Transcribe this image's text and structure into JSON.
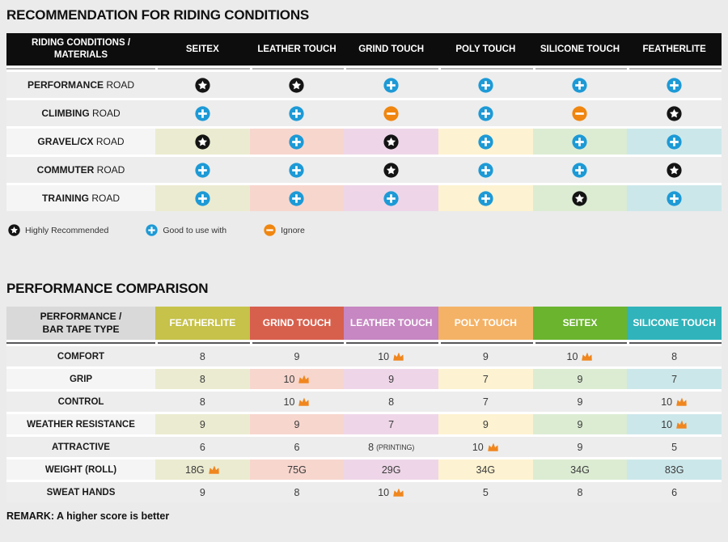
{
  "riding_table": {
    "title": "RECOMMENDATION FOR RIDING CONDITIONS",
    "corner_line1": "RIDING CONDITIONS /",
    "corner_line2": "MATERIALS",
    "columns": [
      "SEITEX",
      "LEATHER TOUCH",
      "GRIND TOUCH",
      "POLY TOUCH",
      "SILICONE TOUCH",
      "FEATHERLITE"
    ],
    "rows": [
      {
        "label_bold": "PERFORMANCE",
        "label_rest": " ROAD",
        "tinted": false,
        "cells": [
          "star",
          "star",
          "plus",
          "plus",
          "plus",
          "plus"
        ]
      },
      {
        "label_bold": "CLIMBING",
        "label_rest": " ROAD",
        "tinted": false,
        "cells": [
          "plus",
          "plus",
          "minus",
          "plus",
          "minus",
          "star"
        ]
      },
      {
        "label_bold": "GRAVEL/CX",
        "label_rest": " ROAD",
        "tinted": true,
        "cells": [
          "star",
          "plus",
          "star",
          "plus",
          "plus",
          "plus"
        ]
      },
      {
        "label_bold": "COMMUTER",
        "label_rest": " ROAD",
        "tinted": false,
        "cells": [
          "plus",
          "plus",
          "star",
          "plus",
          "plus",
          "star"
        ]
      },
      {
        "label_bold": "TRAINING",
        "label_rest": " ROAD",
        "tinted": true,
        "cells": [
          "plus",
          "plus",
          "plus",
          "plus",
          "star",
          "plus"
        ]
      }
    ],
    "legend": [
      {
        "icon": "star",
        "label": "Highly Recommended"
      },
      {
        "icon": "plus",
        "label": "Good to use with"
      },
      {
        "icon": "minus",
        "label": "Ignore"
      }
    ]
  },
  "performance_table": {
    "title": "PERFORMANCE COMPARISON",
    "corner_line1": "PERFORMANCE /",
    "corner_line2": "BAR TAPE TYPE",
    "columns": [
      {
        "label": "FEATHERLITE",
        "color": "#c6c24a"
      },
      {
        "label": "GRIND TOUCH",
        "color": "#d7604d"
      },
      {
        "label": "LEATHER TOUCH",
        "color": "#c687c2"
      },
      {
        "label": "POLY TOUCH",
        "color": "#f4b266"
      },
      {
        "label": "SEITEX",
        "color": "#6ab42e"
      },
      {
        "label": "SILICONE TOUCH",
        "color": "#30b3bb"
      }
    ],
    "rows": [
      {
        "label": "COMFORT",
        "tinted": false,
        "cells": [
          {
            "v": "8"
          },
          {
            "v": "9"
          },
          {
            "v": "10",
            "crown": true
          },
          {
            "v": "9"
          },
          {
            "v": "10",
            "crown": true
          },
          {
            "v": "8"
          }
        ]
      },
      {
        "label": "GRIP",
        "tinted": true,
        "cells": [
          {
            "v": "8"
          },
          {
            "v": "10",
            "crown": true
          },
          {
            "v": "9"
          },
          {
            "v": "7"
          },
          {
            "v": "9"
          },
          {
            "v": "7"
          }
        ]
      },
      {
        "label": "CONTROL",
        "tinted": false,
        "cells": [
          {
            "v": "8"
          },
          {
            "v": "10",
            "crown": true
          },
          {
            "v": "8"
          },
          {
            "v": "7"
          },
          {
            "v": "9"
          },
          {
            "v": "10",
            "crown": true
          }
        ]
      },
      {
        "label": "WEATHER RESISTANCE",
        "tinted": true,
        "cells": [
          {
            "v": "9"
          },
          {
            "v": "9"
          },
          {
            "v": "7"
          },
          {
            "v": "9"
          },
          {
            "v": "9"
          },
          {
            "v": "10",
            "crown": true
          }
        ]
      },
      {
        "label": "ATTRACTIVE",
        "tinted": false,
        "cells": [
          {
            "v": "6"
          },
          {
            "v": "6"
          },
          {
            "v": "8",
            "note": "(PRINTING)"
          },
          {
            "v": "10",
            "crown": true
          },
          {
            "v": "9"
          },
          {
            "v": "5"
          }
        ]
      },
      {
        "label": "WEIGHT (ROLL)",
        "tinted": true,
        "cells": [
          {
            "v": "18G",
            "crown": true
          },
          {
            "v": "75G"
          },
          {
            "v": "29G"
          },
          {
            "v": "34G"
          },
          {
            "v": "34G"
          },
          {
            "v": "83G"
          }
        ]
      },
      {
        "label": "SWEAT HANDS",
        "tinted": false,
        "cells": [
          {
            "v": "9"
          },
          {
            "v": "8"
          },
          {
            "v": "10",
            "crown": true
          },
          {
            "v": "5"
          },
          {
            "v": "8"
          },
          {
            "v": "6"
          }
        ]
      }
    ],
    "remark": "REMARK: A higher score is better"
  },
  "colors": {
    "icon_star_bg": "#141414",
    "icon_plus_bg": "#1d9ad6",
    "icon_minus_bg": "#f0860f",
    "crown": "#f0861e",
    "column_tints": [
      "#ebebd1",
      "#f7d6ce",
      "#eed6e8",
      "#fdf2d1",
      "#dcecd3",
      "#cce7ea"
    ],
    "header_dark_bg": "#0d0d0d",
    "row_bg": "#ededed",
    "tinted_label_bg": "#f5f5f5",
    "corner2_bg": "#d9d9d9"
  },
  "chart_data": [
    {
      "type": "table",
      "title": "RECOMMENDATION FOR RIDING CONDITIONS",
      "row_header": "RIDING CONDITIONS / MATERIALS",
      "columns": [
        "SEITEX",
        "LEATHER TOUCH",
        "GRIND TOUCH",
        "POLY TOUCH",
        "SILICONE TOUCH",
        "FEATHERLITE"
      ],
      "rows": [
        {
          "label": "PERFORMANCE ROAD",
          "values": [
            "star",
            "star",
            "plus",
            "plus",
            "plus",
            "plus"
          ]
        },
        {
          "label": "CLIMBING ROAD",
          "values": [
            "plus",
            "plus",
            "minus",
            "plus",
            "minus",
            "star"
          ]
        },
        {
          "label": "GRAVEL/CX ROAD",
          "values": [
            "star",
            "plus",
            "star",
            "plus",
            "plus",
            "plus"
          ]
        },
        {
          "label": "COMMUTER ROAD",
          "values": [
            "plus",
            "plus",
            "star",
            "plus",
            "plus",
            "star"
          ]
        },
        {
          "label": "TRAINING ROAD",
          "values": [
            "plus",
            "plus",
            "plus",
            "plus",
            "star",
            "plus"
          ]
        }
      ],
      "legend": [
        {
          "symbol": "star",
          "meaning": "Highly Recommended"
        },
        {
          "symbol": "plus",
          "meaning": "Good to use with"
        },
        {
          "symbol": "minus",
          "meaning": "Ignore"
        }
      ]
    },
    {
      "type": "table",
      "title": "PERFORMANCE COMPARISON",
      "row_header": "PERFORMANCE / BAR TAPE TYPE",
      "columns": [
        "FEATHERLITE",
        "GRIND TOUCH",
        "LEATHER TOUCH",
        "POLY TOUCH",
        "SEITEX",
        "SILICONE TOUCH"
      ],
      "rows": [
        {
          "label": "COMFORT",
          "values": [
            "8",
            "9",
            "10 (crown)",
            "9",
            "10 (crown)",
            "8"
          ]
        },
        {
          "label": "GRIP",
          "values": [
            "8",
            "10 (crown)",
            "9",
            "7",
            "9",
            "7"
          ]
        },
        {
          "label": "CONTROL",
          "values": [
            "8",
            "10 (crown)",
            "8",
            "7",
            "9",
            "10 (crown)"
          ]
        },
        {
          "label": "WEATHER RESISTANCE",
          "values": [
            "9",
            "9",
            "7",
            "9",
            "9",
            "10 (crown)"
          ]
        },
        {
          "label": "ATTRACTIVE",
          "values": [
            "6",
            "6",
            "8 (PRINTING)",
            "10 (crown)",
            "9",
            "5"
          ]
        },
        {
          "label": "WEIGHT (ROLL)",
          "values": [
            "18G (crown)",
            "75G",
            "29G",
            "34G",
            "34G",
            "83G"
          ]
        },
        {
          "label": "SWEAT HANDS",
          "values": [
            "9",
            "8",
            "10 (crown)",
            "5",
            "8",
            "6"
          ]
        }
      ],
      "remark": "REMARK: A higher score is better"
    }
  ]
}
